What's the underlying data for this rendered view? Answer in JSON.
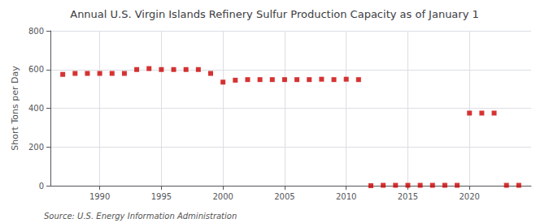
{
  "chart_data": {
    "type": "scatter",
    "title": "Annual U.S. Virgin Islands Refinery Sulfur Production Capacity as of January 1",
    "ylabel": "Short Tons per Day",
    "annotation": "Source: U.S. Energy Information Administration",
    "x": [
      1987,
      1988,
      1989,
      1990,
      1991,
      1992,
      1993,
      1994,
      1995,
      1996,
      1997,
      1998,
      1999,
      2000,
      2001,
      2002,
      2003,
      2004,
      2005,
      2006,
      2007,
      2008,
      2009,
      2010,
      2011,
      2012,
      2013,
      2014,
      2015,
      2016,
      2017,
      2018,
      2019,
      2020,
      2021,
      2022,
      2023,
      2024
    ],
    "values": [
      575,
      580,
      580,
      580,
      580,
      580,
      600,
      605,
      600,
      600,
      600,
      600,
      580,
      535,
      545,
      548,
      548,
      548,
      548,
      548,
      548,
      550,
      548,
      550,
      548,
      0,
      2,
      2,
      2,
      2,
      2,
      2,
      2,
      375,
      375,
      375,
      2,
      2
    ],
    "color": "#cc0000",
    "marker": "square",
    "xlim": [
      1986,
      2025
    ],
    "xticks": [
      1990,
      1995,
      2000,
      2005,
      2010,
      2015,
      2020
    ],
    "ylim": [
      0,
      800
    ],
    "yticks": [
      0,
      200,
      400,
      600,
      800
    ],
    "grid": true
  }
}
